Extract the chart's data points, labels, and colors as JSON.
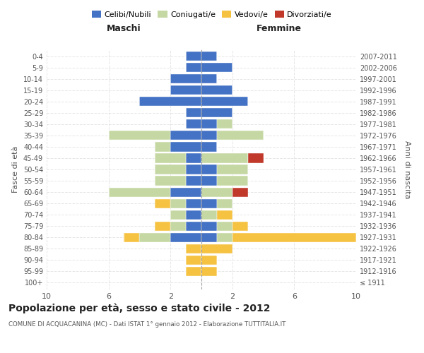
{
  "age_groups": [
    "100+",
    "95-99",
    "90-94",
    "85-89",
    "80-84",
    "75-79",
    "70-74",
    "65-69",
    "60-64",
    "55-59",
    "50-54",
    "45-49",
    "40-44",
    "35-39",
    "30-34",
    "25-29",
    "20-24",
    "15-19",
    "10-14",
    "5-9",
    "0-4"
  ],
  "birth_years": [
    "≤ 1911",
    "1912-1916",
    "1917-1921",
    "1922-1926",
    "1927-1931",
    "1932-1936",
    "1937-1941",
    "1942-1946",
    "1947-1951",
    "1952-1956",
    "1957-1961",
    "1962-1966",
    "1967-1971",
    "1972-1976",
    "1977-1981",
    "1982-1986",
    "1987-1991",
    "1992-1996",
    "1997-2001",
    "2002-2006",
    "2007-2011"
  ],
  "colors": {
    "celibi": "#4472C4",
    "coniugati": "#c5d8a4",
    "vedovi": "#f5c242",
    "divorziati": "#c0392b"
  },
  "maschi": {
    "celibi": [
      0,
      0,
      0,
      0,
      2,
      1,
      1,
      1,
      2,
      1,
      1,
      1,
      2,
      2,
      1,
      1,
      4,
      2,
      2,
      1,
      1
    ],
    "coniugati": [
      0,
      0,
      0,
      0,
      2,
      1,
      1,
      1,
      4,
      2,
      2,
      2,
      1,
      4,
      0,
      0,
      0,
      0,
      0,
      0,
      0
    ],
    "vedovi": [
      0,
      1,
      1,
      1,
      1,
      1,
      0,
      1,
      0,
      0,
      0,
      0,
      0,
      0,
      0,
      0,
      0,
      0,
      0,
      0,
      0
    ],
    "divorziati": [
      0,
      0,
      0,
      0,
      0,
      0,
      0,
      0,
      0,
      0,
      0,
      0,
      0,
      0,
      0,
      0,
      0,
      0,
      0,
      0,
      0
    ]
  },
  "femmine": {
    "celibi": [
      0,
      0,
      0,
      0,
      1,
      1,
      0,
      1,
      0,
      1,
      1,
      0,
      1,
      1,
      1,
      2,
      3,
      2,
      1,
      2,
      1
    ],
    "coniugati": [
      0,
      0,
      0,
      0,
      1,
      1,
      1,
      1,
      2,
      2,
      2,
      3,
      0,
      3,
      1,
      0,
      0,
      0,
      0,
      0,
      0
    ],
    "vedovi": [
      0,
      1,
      1,
      2,
      8,
      1,
      1,
      0,
      0,
      0,
      0,
      0,
      0,
      0,
      0,
      0,
      0,
      0,
      0,
      0,
      0
    ],
    "divorziati": [
      0,
      0,
      0,
      0,
      0,
      0,
      0,
      0,
      1,
      0,
      0,
      1,
      0,
      0,
      0,
      0,
      0,
      0,
      0,
      0,
      0
    ]
  },
  "xlim": [
    -10,
    10
  ],
  "xticklabels": [
    "10",
    "6",
    "2",
    "2",
    "6",
    "10"
  ],
  "title": "Popolazione per età, sesso e stato civile - 2012",
  "subtitle": "COMUNE DI ACQUACANINA (MC) - Dati ISTAT 1° gennaio 2012 - Elaborazione TUTTITALIA.IT",
  "ylabel_left": "Fasce di età",
  "ylabel_right": "Anni di nascita",
  "legend_labels": [
    "Celibi/Nubili",
    "Coniugati/e",
    "Vedovi/e",
    "Divorziati/e"
  ],
  "maschi_label": "Maschi",
  "femmine_label": "Femmine",
  "bg_color": "#ffffff",
  "grid_color": "#cccccc",
  "text_color": "#555555",
  "title_color": "#222222"
}
